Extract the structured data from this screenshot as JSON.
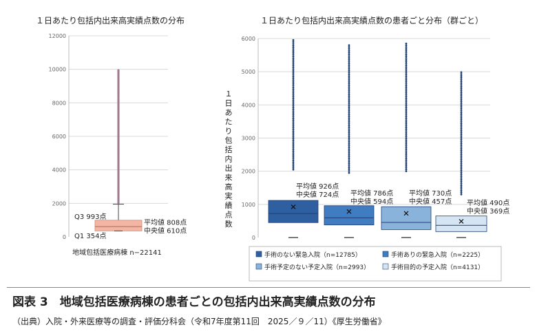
{
  "caption": {
    "title": "図表 3　地域包括医療病棟の患者ごとの包括内出来高実績点数の分布",
    "source": "（出典）入院・外来医療等の調査・評価分科会（令和7年度第11回　2025／９／11）《厚生労働省》"
  },
  "chart_data": [
    {
      "type": "box",
      "title": "１日あたり包括内出来高実績点数の分布",
      "xlabel": "地域包括医療病棟 n−22141",
      "ylim": [
        0,
        12000
      ],
      "y_ticks": [
        "0",
        "2000",
        "4000",
        "6000",
        "8000",
        "10000",
        "12000"
      ],
      "grid": true,
      "box_color": "#f4b6a4",
      "outlier_color": "#a07890",
      "box": {
        "q1": 354,
        "q3": 993,
        "mean": 808,
        "median": 610,
        "whisker_low": 0,
        "whisker_high": 1950,
        "outlier_max": 10000
      },
      "annotations": {
        "q3": "Q3 993点",
        "q1": "Q1 354点",
        "mean": "平均値 808点",
        "median": "中央値 610点"
      }
    },
    {
      "type": "box",
      "title": "１日あたり包括内出来高実績点数の患者ごと分布（群ごと）",
      "ylabel": "１日あたり包括内出来高実績点数",
      "ylim": [
        0,
        6000
      ],
      "y_ticks": [
        "0",
        "1000",
        "2000",
        "3000",
        "4000",
        "5000",
        "6000"
      ],
      "grid": true,
      "legend_position": "bottom",
      "series": [
        {
          "name": "手術のない緊急入院（n=12785）",
          "color": "#2e5fa0",
          "mean": 926,
          "median": 724,
          "q1": 450,
          "q3": 1120,
          "outlier_min": 2050,
          "outlier_max": 6000,
          "mean_label": "平均値 926点",
          "median_label": "中央値 724点"
        },
        {
          "name": "手術ありの緊急入院（n=2225）",
          "color": "#3f7cc2",
          "mean": 786,
          "median": 594,
          "q1": 380,
          "q3": 960,
          "outlier_min": 1950,
          "outlier_max": 5850,
          "mean_label": "平均値 786点",
          "median_label": "中央値 594点"
        },
        {
          "name": "手術予定のない予定入院（n=2993）",
          "color": "#8ab3dc",
          "mean": 730,
          "median": 457,
          "q1": 240,
          "q3": 930,
          "outlier_min": 2000,
          "outlier_max": 5900,
          "mean_label": "平均値 730点",
          "median_label": "中央値 457点"
        },
        {
          "name": "手術目的の予定入院（n=4131）",
          "color": "#d6e5f3",
          "mean": 490,
          "median": 369,
          "q1": 180,
          "q3": 650,
          "outlier_min": 1300,
          "outlier_max": 5000,
          "mean_label": "平均値 490点",
          "median_label": "中央値 369点"
        }
      ]
    }
  ]
}
